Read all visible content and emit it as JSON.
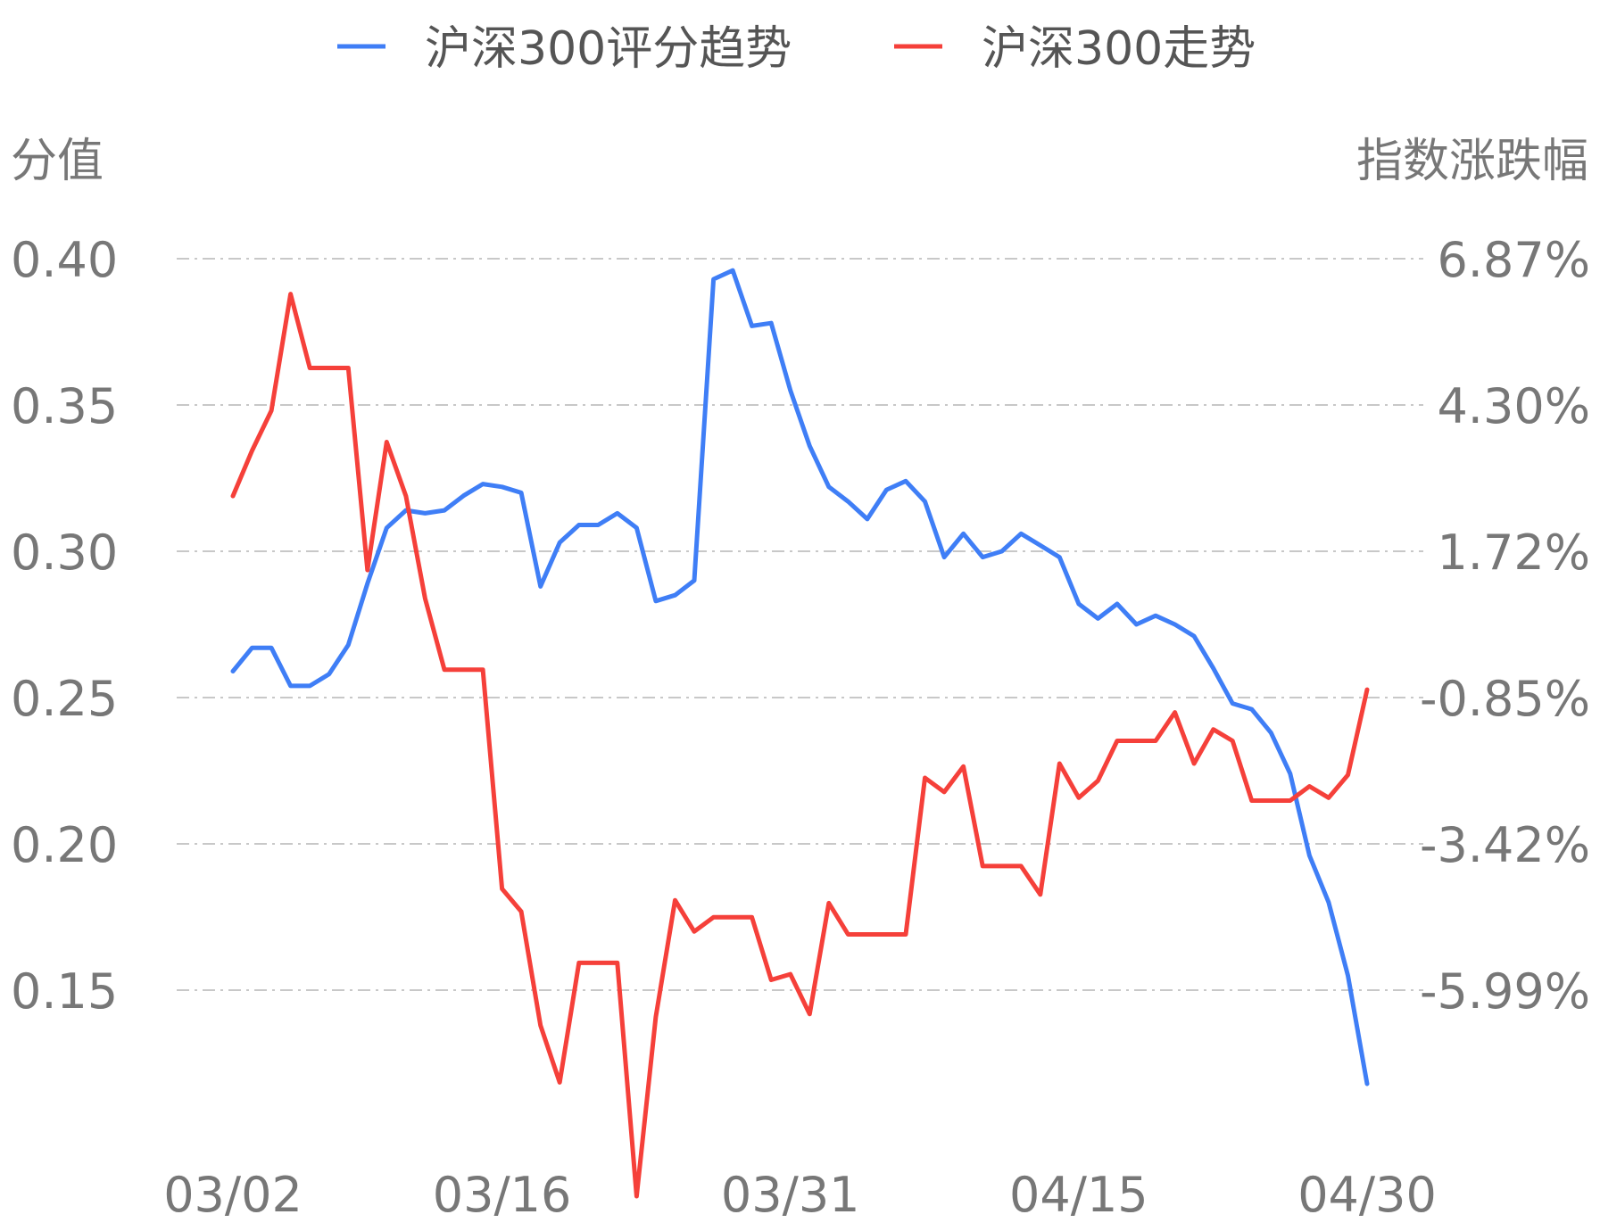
{
  "chart_data": {
    "type": "line",
    "legend": {
      "placement": "top-center",
      "items": [
        {
          "name": "沪深300评分趋势",
          "color": "#3f7ef6"
        },
        {
          "name": "沪深300走势",
          "color": "#f5403a"
        }
      ]
    },
    "left_axis": {
      "title": "分值",
      "ticks": [
        "0.40",
        "0.35",
        "0.30",
        "0.25",
        "0.20",
        "0.15"
      ],
      "range": [
        0.12,
        0.4
      ]
    },
    "right_axis": {
      "title": "指数涨跌幅",
      "ticks": [
        "6.87%",
        "4.30%",
        "1.72%",
        "-0.85%",
        "-3.42%",
        "-5.99%"
      ],
      "range": [
        -8.6,
        6.87
      ]
    },
    "x_tick_labels": [
      "03/02",
      "03/16",
      "03/31",
      "04/15",
      "04/30"
    ],
    "x_tick_index": [
      0,
      14,
      29,
      44,
      59
    ],
    "grid": true,
    "series": [
      {
        "name": "沪深300评分趋势",
        "axis": "left",
        "color": "#3f7ef6",
        "values": [
          0.259,
          0.267,
          0.267,
          0.254,
          0.254,
          0.258,
          0.268,
          0.289,
          0.308,
          0.314,
          0.313,
          0.314,
          0.319,
          0.323,
          0.322,
          0.32,
          0.288,
          0.303,
          0.309,
          0.309,
          0.313,
          0.308,
          0.283,
          0.285,
          0.29,
          0.393,
          0.396,
          0.377,
          0.378,
          0.355,
          0.336,
          0.322,
          0.317,
          0.311,
          0.321,
          0.324,
          0.317,
          0.298,
          0.306,
          0.298,
          0.3,
          0.306,
          0.302,
          0.298,
          0.282,
          0.277,
          0.282,
          0.275,
          0.278,
          0.275,
          0.271,
          0.26,
          0.248,
          0.246,
          0.238,
          0.224,
          0.196,
          0.18,
          0.155,
          0.118
        ]
      },
      {
        "name": "沪深300走势",
        "axis": "right",
        "color": "#f5403a",
        "values": [
          2.7,
          3.5,
          4.2,
          6.25,
          4.95,
          4.95,
          4.95,
          1.4,
          3.65,
          2.7,
          0.9,
          -0.35,
          -0.35,
          -0.35,
          -4.2,
          -4.6,
          -6.6,
          -7.6,
          -5.5,
          -5.5,
          -5.5,
          -9.6,
          -6.45,
          -4.4,
          -4.95,
          -4.7,
          -4.7,
          -4.7,
          -5.8,
          -5.7,
          -6.4,
          -4.45,
          -5.0,
          -5.0,
          -5.0,
          -5.0,
          -2.25,
          -2.5,
          -2.05,
          -3.8,
          -3.8,
          -3.8,
          -4.3,
          -2.0,
          -2.6,
          -2.3,
          -1.6,
          -1.6,
          -1.6,
          -1.1,
          -2.0,
          -1.4,
          -1.6,
          -2.65,
          -2.65,
          -2.65,
          -2.4,
          -2.6,
          -2.2,
          -0.7
        ]
      }
    ]
  }
}
